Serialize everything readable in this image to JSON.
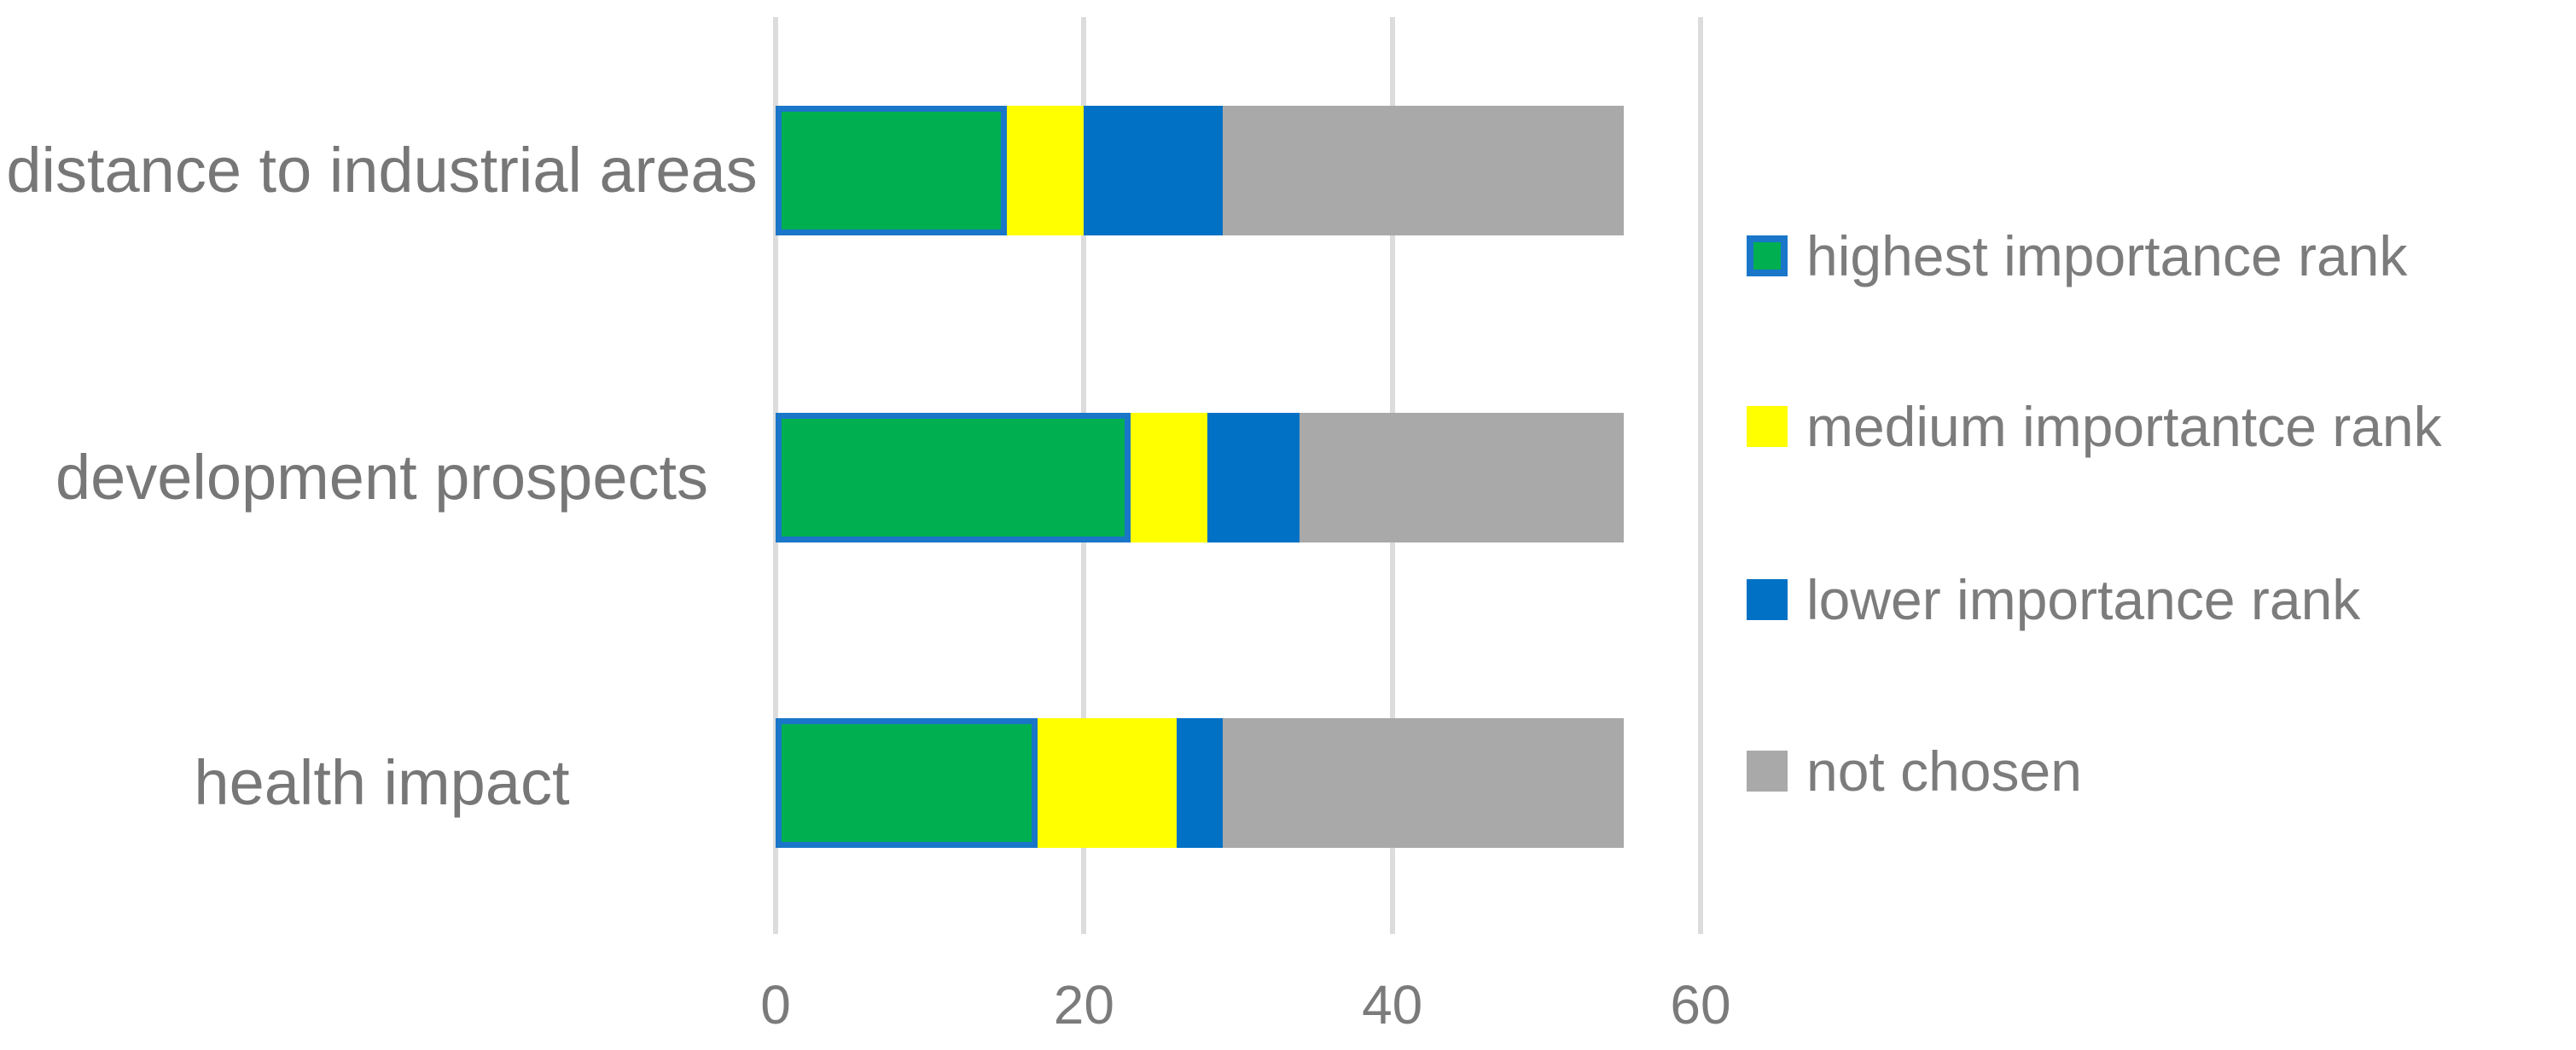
{
  "chart_data": {
    "type": "bar",
    "orientation": "horizontal",
    "stacked": true,
    "title": "",
    "xlabel": "",
    "ylabel": "",
    "grid": true,
    "legend_position": "right",
    "categories": [
      "distance to industrial areas",
      "development prospects",
      "health impact"
    ],
    "series": [
      {
        "name": "highest importance rank",
        "color": "#00B050",
        "border_color": "#1976C8",
        "values": [
          15,
          23,
          17
        ]
      },
      {
        "name": "medium importantce rank",
        "color": "#FFFF00",
        "border_color": null,
        "values": [
          5,
          5,
          9
        ]
      },
      {
        "name": "lower importance rank",
        "color": "#0071C5",
        "border_color": null,
        "values": [
          9,
          6,
          3
        ]
      },
      {
        "name": "not chosen",
        "color": "#A9A9A9",
        "border_color": null,
        "values": [
          26,
          21,
          26
        ]
      }
    ],
    "x_axis": {
      "min": 0,
      "max": 60,
      "ticks": [
        "0",
        "20",
        "40",
        "60"
      ],
      "tick_values": [
        0,
        20,
        40,
        60
      ]
    },
    "row_totals": [
      55,
      55,
      55
    ]
  },
  "colors": {
    "background": "#FFFFFF",
    "gridline": "#DCDCDC",
    "text": "#777777"
  }
}
